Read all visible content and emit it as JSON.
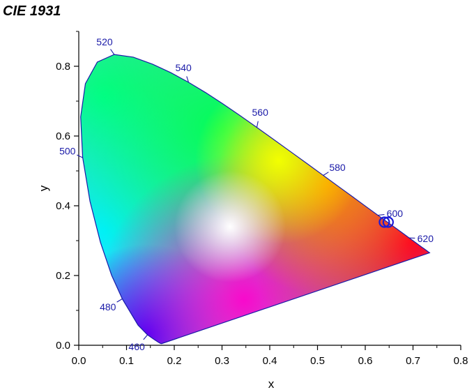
{
  "chart_data": {
    "type": "scatter",
    "title": "CIE 1931",
    "xlabel": "x",
    "ylabel": "y",
    "xlim": [
      0.0,
      0.8
    ],
    "ylim": [
      0.0,
      0.9
    ],
    "x_ticks": [
      "0.0",
      "0.1",
      "0.2",
      "0.3",
      "0.4",
      "0.5",
      "0.6",
      "0.7",
      "0.8"
    ],
    "y_ticks": [
      "0.0",
      "0.2",
      "0.4",
      "0.6",
      "0.8"
    ],
    "grid": false,
    "boundary_color": "#1a1aa8",
    "wavelength_labels": [
      {
        "text": "460",
        "x": 0.144,
        "y": 0.03
      },
      {
        "text": "480",
        "x": 0.091,
        "y": 0.133
      },
      {
        "text": "500",
        "x": 0.008,
        "y": 0.538
      },
      {
        "text": "520",
        "x": 0.074,
        "y": 0.834
      },
      {
        "text": "540",
        "x": 0.23,
        "y": 0.754
      },
      {
        "text": "560",
        "x": 0.373,
        "y": 0.625
      },
      {
        "text": "580",
        "x": 0.512,
        "y": 0.487
      },
      {
        "text": "600",
        "x": 0.627,
        "y": 0.373
      },
      {
        "text": "620",
        "x": 0.691,
        "y": 0.308
      }
    ],
    "series": [
      {
        "points": [
          {
            "x": 0.64,
            "y": 0.353
          },
          {
            "x": 0.648,
            "y": 0.353
          }
        ],
        "color": "#1a1ad8",
        "marker": "open-circle"
      }
    ]
  }
}
